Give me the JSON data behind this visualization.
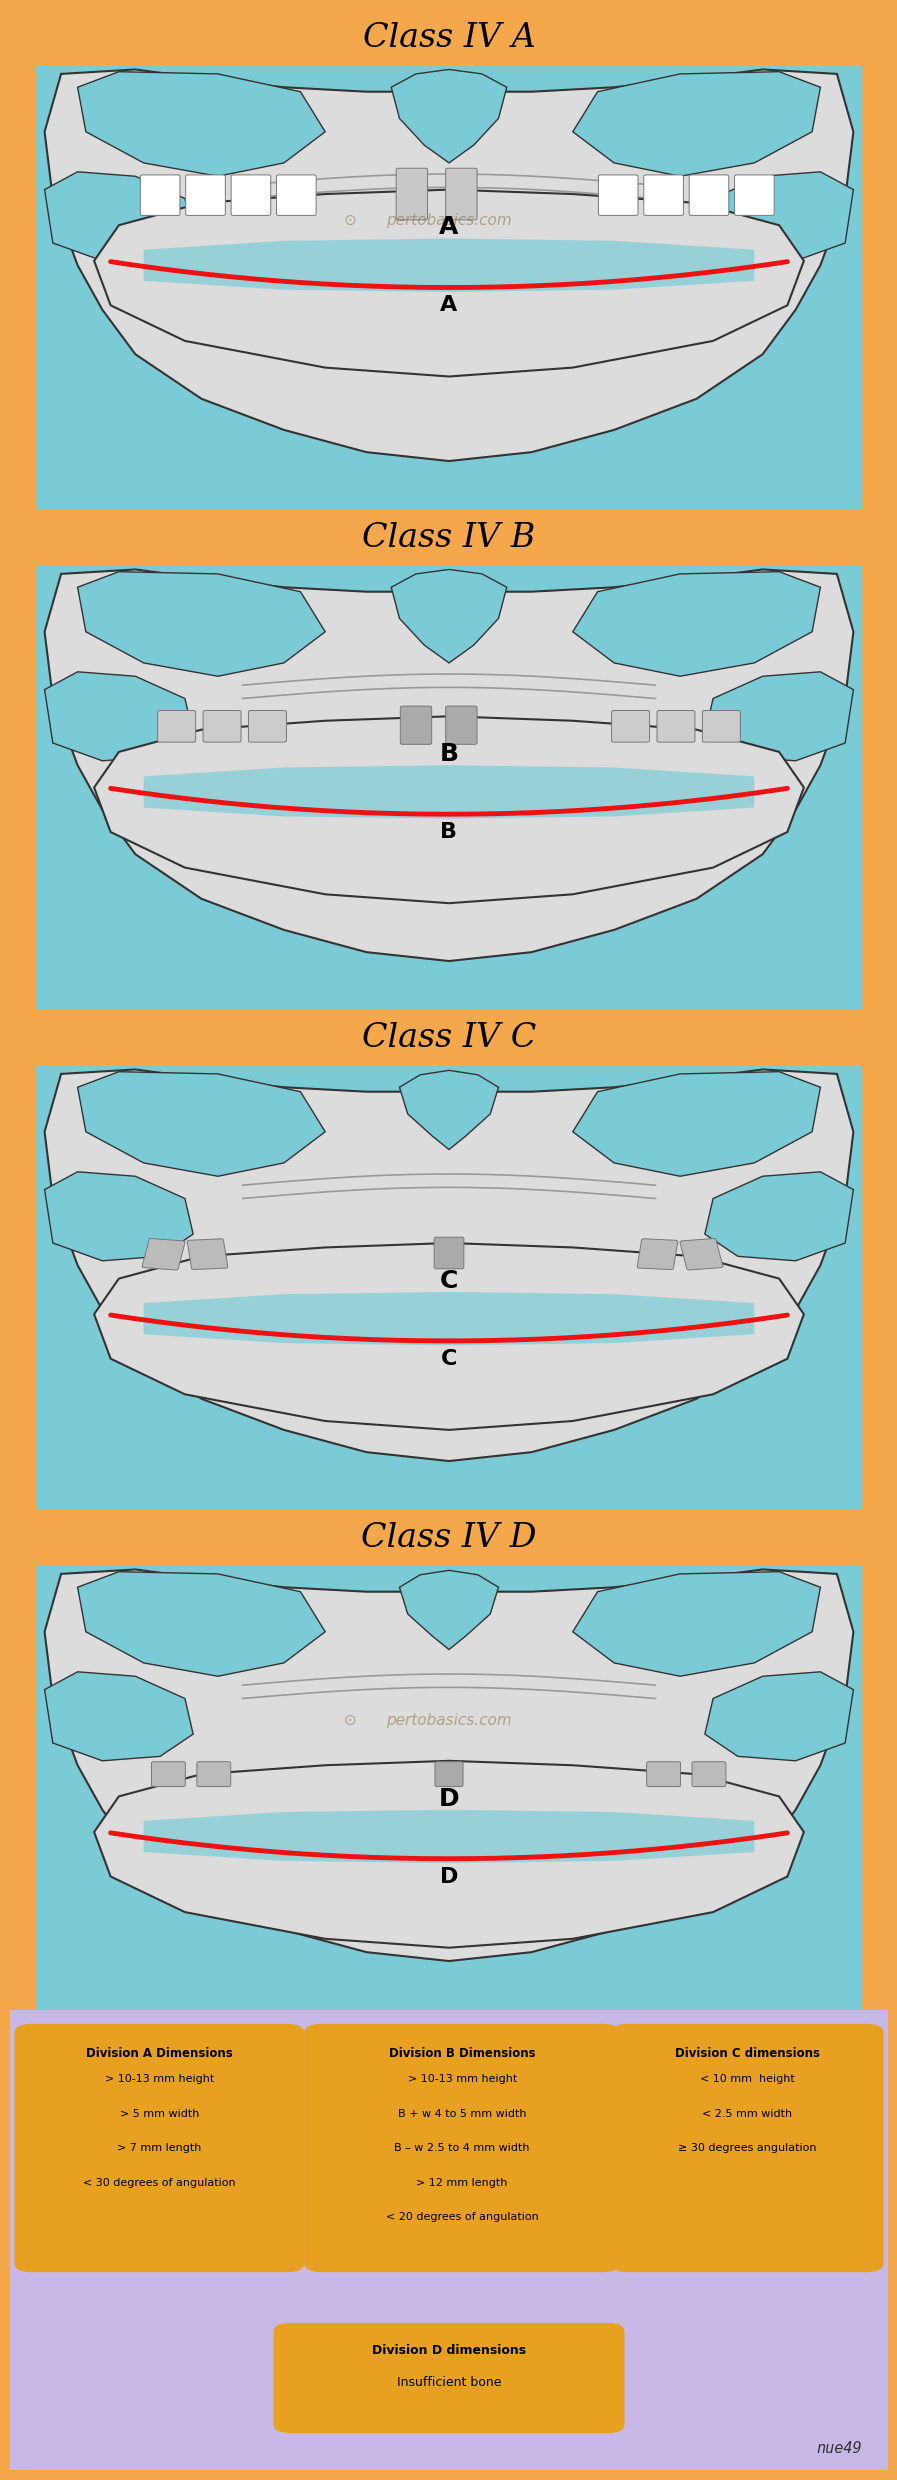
{
  "bg_orange": "#F5A84B",
  "bg_lavender": "#C8B8E8",
  "bg_blue": "#7BCBD6",
  "bone_white": "#E0E0E0",
  "red_nerve": "#EE1111",
  "dark_border": "#2a2a2a",
  "text_dark": "#1a1a1a",
  "box_gold": "#E8A020",
  "panel_titles": [
    "Class IV A",
    "Class IV B",
    "Class IV C",
    "Class IV D"
  ],
  "panel_labels": [
    "A",
    "B",
    "C",
    "D"
  ],
  "watermark_panels": [
    0,
    3
  ],
  "legend_boxes": [
    {
      "title": "Division A Dimensions",
      "lines": [
        "> 10-13 mm height",
        "> 5 mm width",
        "> 7 mm length",
        "< 30 degrees of angulation"
      ]
    },
    {
      "title": "Division B Dimensions",
      "lines": [
        "> 10-13 mm height",
        "B + w 4 to 5 mm width",
        "B – w 2.5 to 4 mm width",
        "> 12 mm length",
        "< 20 degrees of angulation"
      ]
    },
    {
      "title": "Division C dimensions",
      "lines": [
        "< 10 mm  height",
        "< 2.5 mm width",
        "≥ 30 degrees angulation"
      ]
    },
    {
      "title": "Division D dimensions",
      "lines": [
        "Insufficient bone"
      ]
    }
  ],
  "signature": "nue49"
}
